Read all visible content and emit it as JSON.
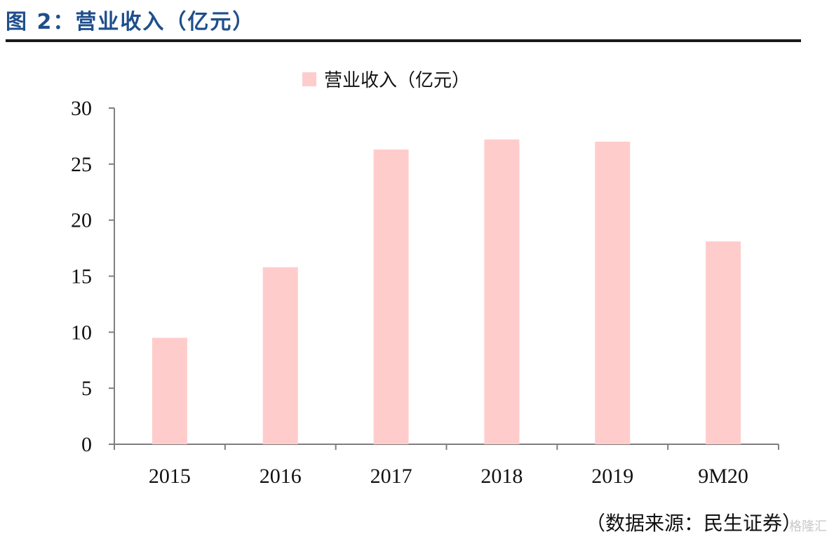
{
  "figure": {
    "title": "图 2：营业收入（亿元）"
  },
  "source": "（数据来源：民生证券）",
  "watermark": "格隆汇",
  "colors": {
    "bar": "#ffcccc",
    "axis": "#7f7f7f",
    "title": "#1f4e8c"
  },
  "chart_data": {
    "type": "bar",
    "title": "",
    "xlabel": "",
    "ylabel": "",
    "categories": [
      "2015",
      "2016",
      "2017",
      "2018",
      "2019",
      "9M20"
    ],
    "series": [
      {
        "name": "营业收入（亿元）",
        "values": [
          9.5,
          15.8,
          26.3,
          27.2,
          27.0,
          18.1
        ]
      }
    ],
    "ylim": [
      0,
      30
    ],
    "yticks": [
      "0",
      "5",
      "10",
      "15",
      "20",
      "25",
      "30"
    ],
    "grid": false,
    "legend": "top-center"
  }
}
